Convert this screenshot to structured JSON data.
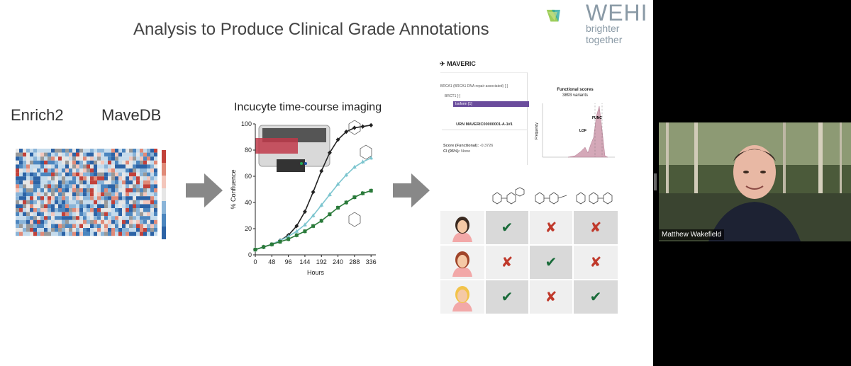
{
  "slide": {
    "title": "Analysis to Produce Clinical Grade Annotations",
    "logo_name": "WEHI",
    "logo_tagline": "brighter together",
    "colors": {
      "logo_green": "#8dc63f",
      "logo_teal": "#2aa7a0",
      "logo_gray": "#8a9aa6",
      "arrow_gray": "#888888"
    }
  },
  "left": {
    "enrich_label": "Enrich2",
    "mavedb_label": "MaveDB"
  },
  "incucyte": {
    "title": "Incucyte time-course imaging"
  },
  "chart_data": {
    "type": "line",
    "xlabel": "Hours",
    "ylabel": "% Confluence",
    "x_ticks": [
      "0",
      "48",
      "96",
      "144",
      "192",
      "240",
      "288",
      "336"
    ],
    "y_ticks": [
      "0",
      "20",
      "40",
      "60",
      "80",
      "100"
    ],
    "xlim": [
      0,
      350
    ],
    "ylim": [
      0,
      100
    ],
    "series": [
      {
        "color": "#222222",
        "x": [
          0,
          24,
          48,
          72,
          96,
          120,
          144,
          168,
          192,
          216,
          240,
          264,
          288,
          312,
          336
        ],
        "y": [
          4,
          6,
          8,
          11,
          15,
          22,
          33,
          48,
          64,
          78,
          88,
          94,
          97,
          98,
          99
        ]
      },
      {
        "color": "#7cc5cf",
        "x": [
          0,
          24,
          48,
          72,
          96,
          120,
          144,
          168,
          192,
          216,
          240,
          264,
          288,
          312,
          336
        ],
        "y": [
          4,
          6,
          8,
          11,
          14,
          18,
          23,
          30,
          38,
          46,
          54,
          61,
          67,
          71,
          74
        ]
      },
      {
        "color": "#2a7a3a",
        "x": [
          0,
          24,
          48,
          72,
          96,
          120,
          144,
          168,
          192,
          216,
          240,
          264,
          288,
          312,
          336
        ],
        "y": [
          4,
          6,
          8,
          10,
          12,
          15,
          18,
          22,
          26,
          31,
          36,
          40,
          44,
          47,
          49
        ]
      }
    ]
  },
  "maveric": {
    "app_name": "MAVERIC",
    "gene_line": "BRCA1 (BRCA1 DNA repair associated) [-]",
    "sub_line": "BRCT1 [-]",
    "urn": "URN MAVERIC00000001-A-1#1",
    "score_label": "Score (Functional):",
    "score_value": "-0.3726",
    "ci_label": "CI (95%):",
    "ci_value": "None",
    "plot_title": "Functional scores",
    "plot_subtitle": "3893 variants",
    "plot_ylabel": "Frequency",
    "label_func": "FUNC",
    "label_lof": "LOF",
    "highlight_item": "Isoform [1]"
  },
  "drug_table": {
    "rows": [
      {
        "face": "dark-hair",
        "hair_color": "#3b2a20",
        "marks": [
          "check",
          "cross",
          "cross"
        ]
      },
      {
        "face": "red-hair",
        "hair_color": "#a0452a",
        "marks": [
          "cross",
          "check",
          "cross"
        ]
      },
      {
        "face": "blonde-hair",
        "hair_color": "#f2c34a",
        "marks": [
          "check",
          "cross",
          "check"
        ]
      }
    ],
    "check_glyph": "✔",
    "cross_glyph": "✘"
  },
  "video": {
    "participant_name": "Matthew Wakefield"
  }
}
